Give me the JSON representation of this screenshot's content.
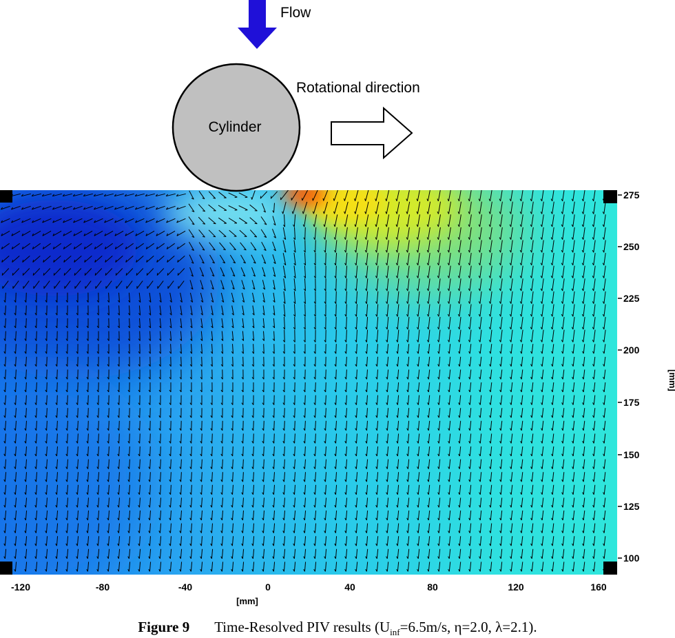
{
  "diagram": {
    "flow_label": "Flow",
    "rotation_label": "Rotational direction",
    "cylinder_label": "Cylinder"
  },
  "plot": {
    "x_axis": {
      "label": "[mm]",
      "ticks": [
        "-120",
        "-80",
        "-40",
        "0",
        "40",
        "80",
        "120",
        "160"
      ]
    },
    "y_axis": {
      "label": "[mm]",
      "ticks": [
        "275",
        "250",
        "225",
        "200",
        "175",
        "150",
        "125",
        "100"
      ]
    }
  },
  "caption": {
    "figure_number": "Figure 9",
    "text_before_sub": "Time-Resolved PIV results (U",
    "sub": "inf",
    "text_after_sub": "=6.5m/s, η=2.0, λ=2.1)."
  },
  "colors": {
    "flow_arrow": "#1f10d8",
    "cylinder_fill": "#c0c0c0",
    "field_low": "#0a3fd4",
    "field_mid": "#27d3e6",
    "field_high": "#ff5a00",
    "vector": "#000000"
  }
}
